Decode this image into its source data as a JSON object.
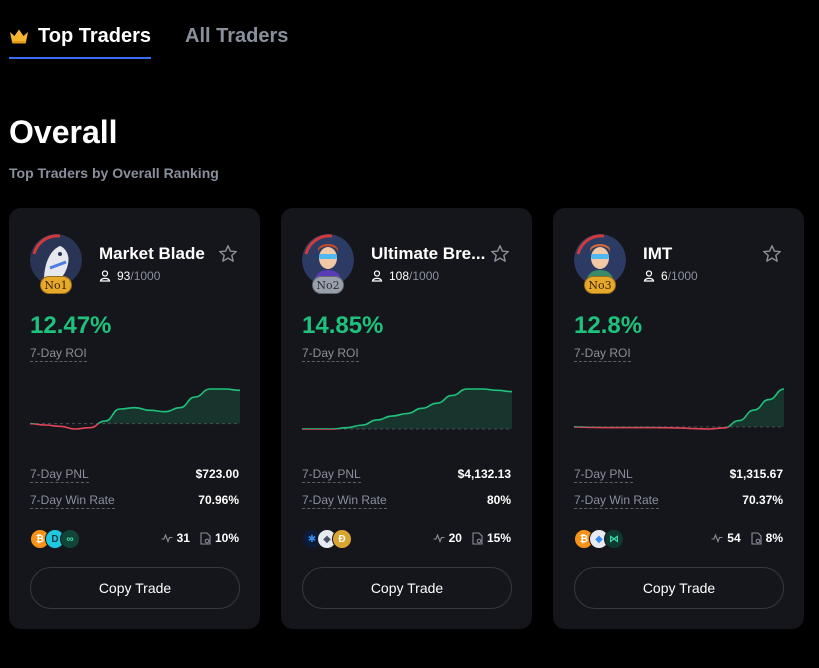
{
  "tabs": [
    {
      "label": "Top Traders",
      "active": true,
      "icon": "crown-icon"
    },
    {
      "label": "All Traders",
      "active": false
    }
  ],
  "section": {
    "title": "Overall",
    "subtitle": "Top Traders by Overall Ranking"
  },
  "colors": {
    "positive": "#1fc27d",
    "negative": "#e0465a",
    "accent": "#3b6cf6"
  },
  "cards": [
    {
      "name": "Market Blade",
      "rank": "No1",
      "followers": "93",
      "followers_max": "/1000",
      "roi": "12.47%",
      "roi_label": "7-Day ROI",
      "pnl_label": "7-Day PNL",
      "pnl": "$723.00",
      "winrate_label": "7-Day Win Rate",
      "winrate": "70.96%",
      "coins": [
        "bitcoin-icon",
        "dash-icon",
        "chainlink-icon"
      ],
      "trades": "31",
      "share": "10%",
      "copy_label": "Copy Trade",
      "trend": [
        0.0,
        -0.05,
        -0.1,
        -0.2,
        -0.15,
        0.1,
        0.55,
        0.6,
        0.5,
        0.45,
        0.6,
        1.0,
        1.3,
        1.3,
        1.25
      ]
    },
    {
      "name": "Ultimate Bre...",
      "rank": "No2",
      "followers": "108",
      "followers_max": "/1000",
      "roi": "14.85%",
      "roi_label": "7-Day ROI",
      "pnl_label": "7-Day PNL",
      "pnl": "$4,132.13",
      "winrate_label": "7-Day Win Rate",
      "winrate": "80%",
      "coins": [
        "polkadot-icon",
        "ethereum-icon",
        "dogecoin-icon"
      ],
      "trades": "20",
      "share": "15%",
      "copy_label": "Copy Trade",
      "trend": [
        0.0,
        0.0,
        0.0,
        0.05,
        0.15,
        0.35,
        0.5,
        0.6,
        0.8,
        1.0,
        1.3,
        1.55,
        1.55,
        1.5,
        1.45
      ]
    },
    {
      "name": "IMT",
      "rank": "No3",
      "followers": "6",
      "followers_max": "/1000",
      "roi": "12.8%",
      "roi_label": "7-Day ROI",
      "pnl_label": "7-Day PNL",
      "pnl": "$1,315.67",
      "winrate_label": "7-Day Win Rate",
      "winrate": "70.37%",
      "coins": [
        "bitcoin-icon",
        "ethereum-icon",
        "hedera-icon"
      ],
      "trades": "54",
      "share": "8%",
      "copy_label": "Copy Trade",
      "trend": [
        0.0,
        -0.02,
        -0.03,
        -0.03,
        -0.03,
        -0.03,
        -0.04,
        -0.05,
        -0.08,
        -0.1,
        -0.05,
        0.3,
        0.8,
        1.3,
        1.8
      ]
    }
  ]
}
